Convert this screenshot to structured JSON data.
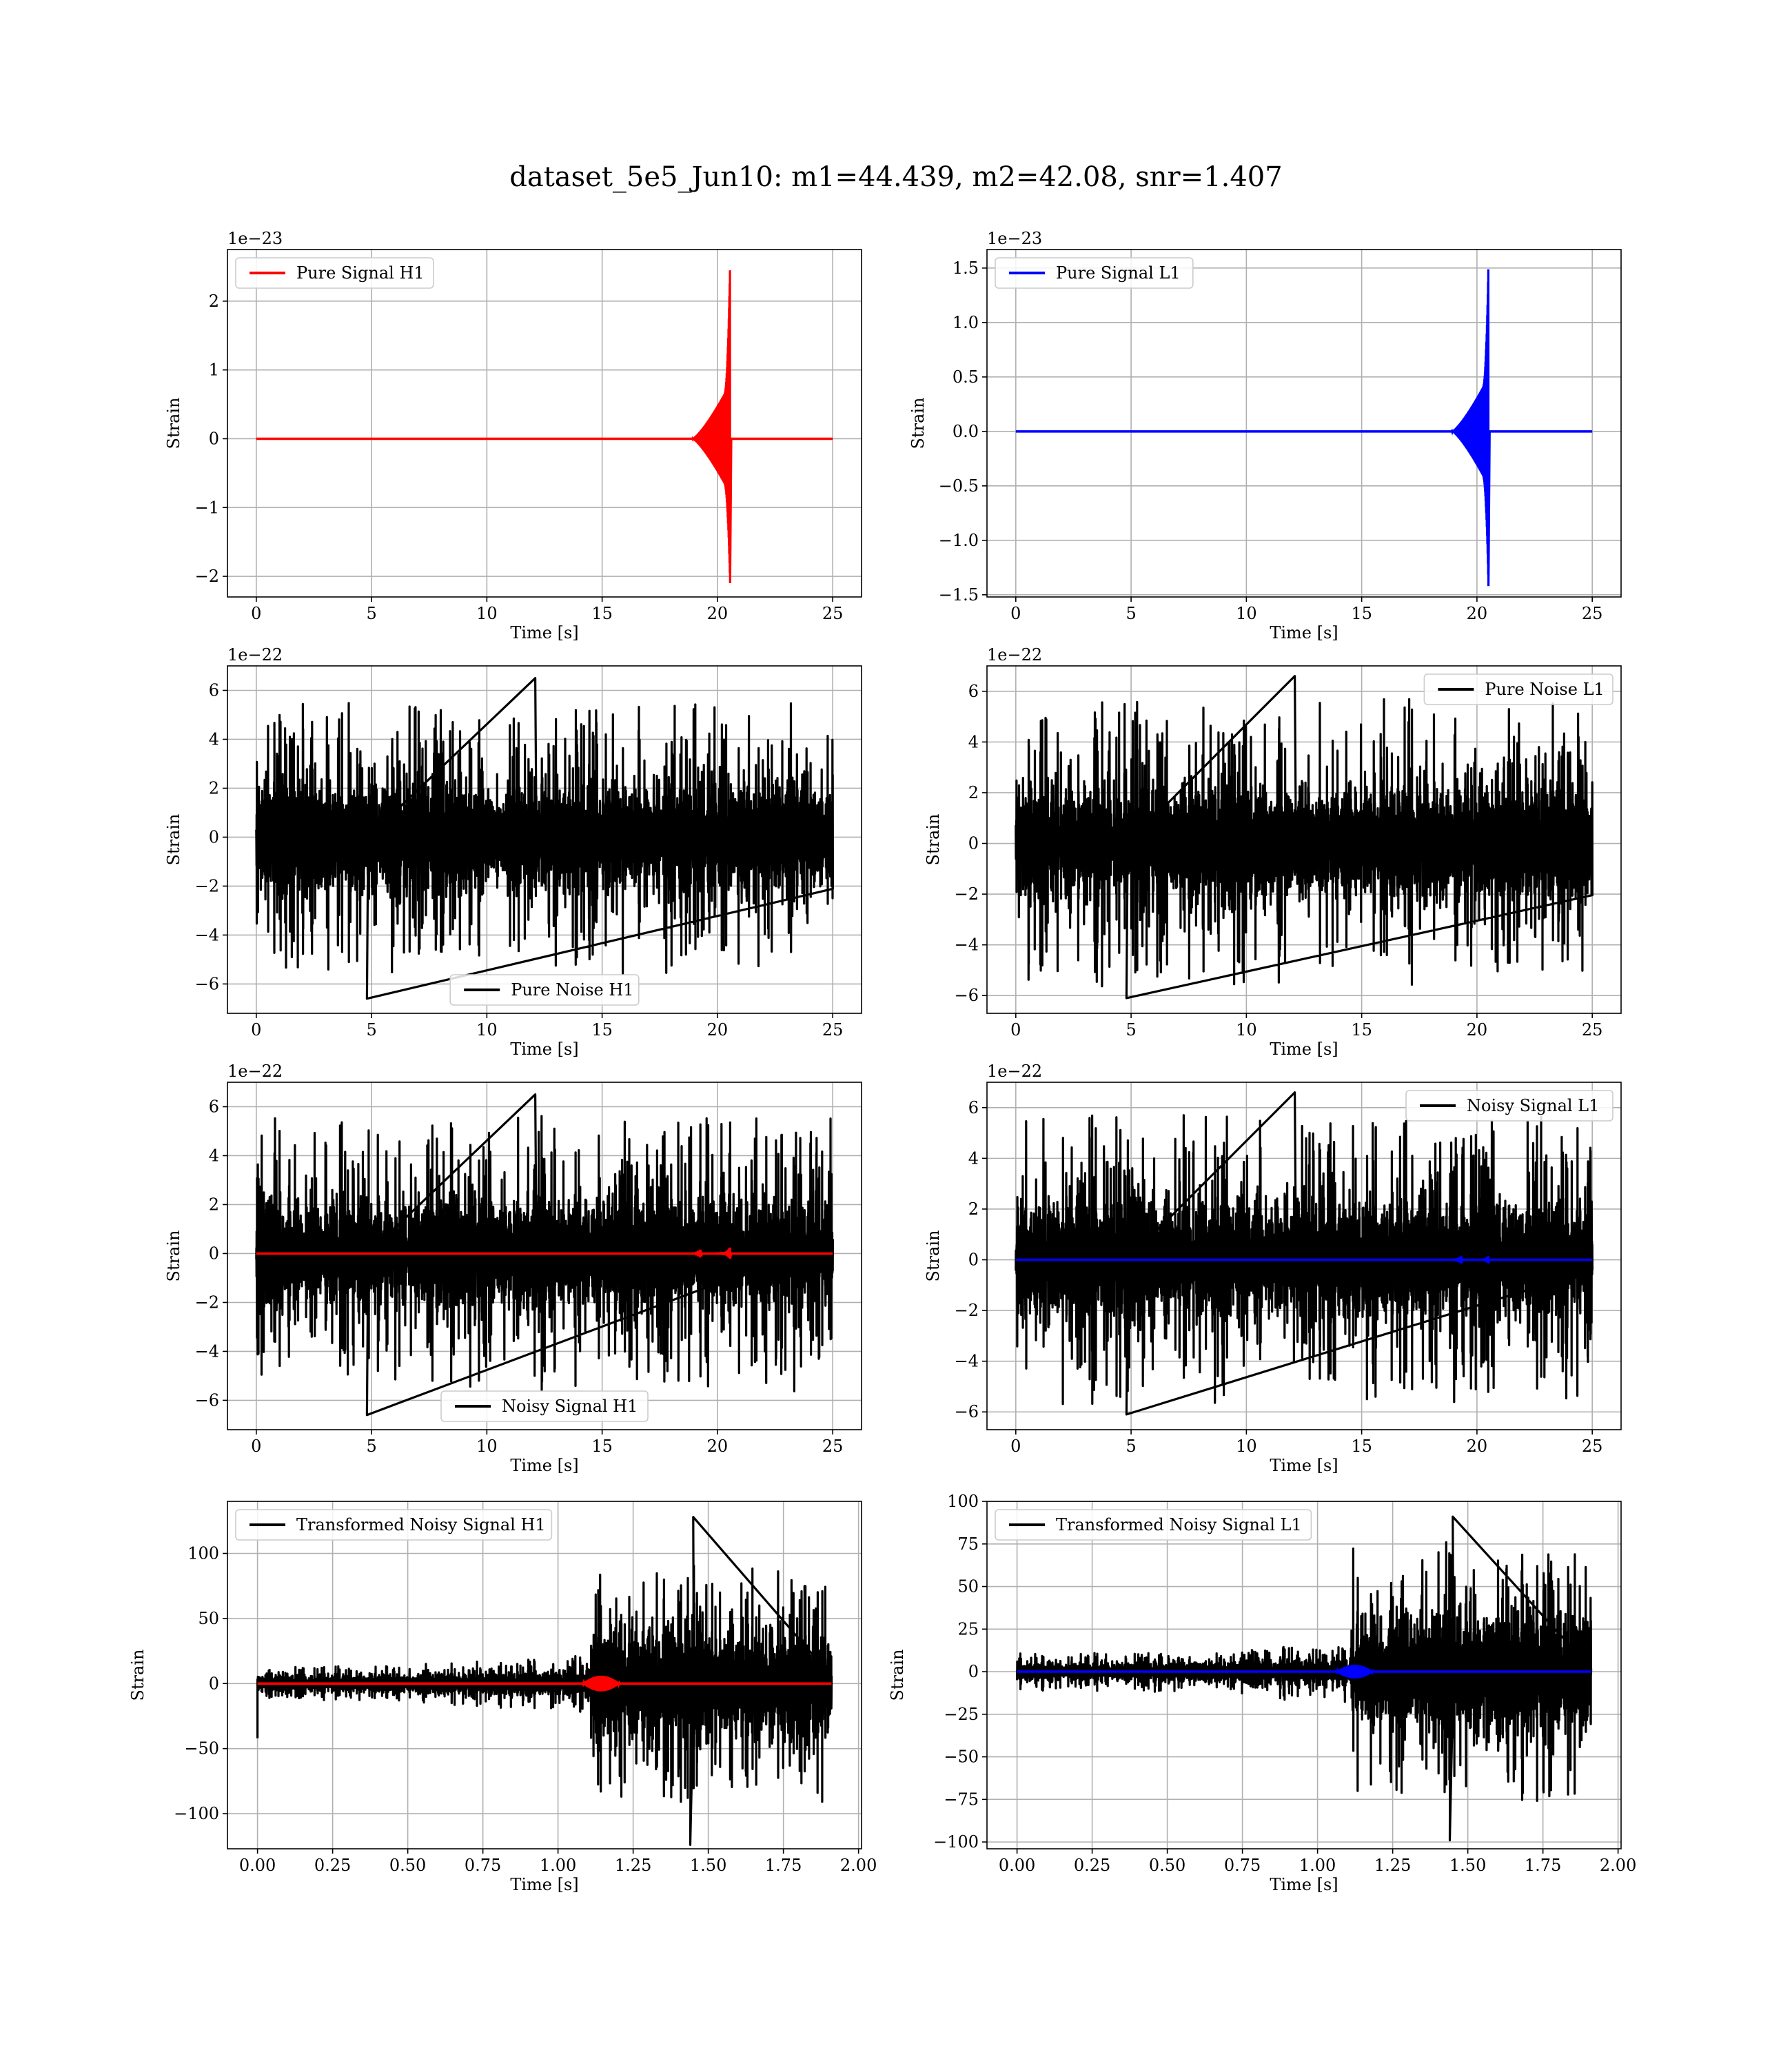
{
  "figure": {
    "title": "dataset_5e5_Jun10: m1=44.439, m2=42.08, snr=1.407"
  },
  "chart_data": [
    {
      "id": "pure-signal-h1",
      "type": "line",
      "title": "",
      "xlabel": "Time [s]",
      "ylabel": "Strain",
      "offset_text": "1e−23",
      "xlim": [
        -1.25,
        26.25
      ],
      "ylim": [
        -2.3,
        2.75
      ],
      "xticks": [
        0,
        5,
        10,
        15,
        20,
        25
      ],
      "xtick_labels": [
        "0",
        "5",
        "10",
        "15",
        "20",
        "25"
      ],
      "yticks": [
        -2,
        -1,
        0,
        1,
        2
      ],
      "ytick_labels": [
        "−2",
        "−1",
        "0",
        "1",
        "2"
      ],
      "grid": true,
      "legend_position": "upper-left",
      "series": [
        {
          "name": "Pure Signal H1",
          "color": "#ff0000",
          "kind": "chirp",
          "t_start": 0,
          "t_end": 25,
          "t_merger": 20.55,
          "peak_upper": 2.55,
          "peak_lower": -2.1,
          "inspiral_envelope": 0.8,
          "inspiral_begin": 18.9
        }
      ]
    },
    {
      "id": "pure-signal-l1",
      "type": "line",
      "title": "",
      "xlabel": "Time [s]",
      "ylabel": "Strain",
      "offset_text": "1e−23",
      "xlim": [
        -1.25,
        26.25
      ],
      "ylim": [
        -1.52,
        1.67
      ],
      "xticks": [
        0,
        5,
        10,
        15,
        20,
        25
      ],
      "xtick_labels": [
        "0",
        "5",
        "10",
        "15",
        "20",
        "25"
      ],
      "yticks": [
        -1.5,
        -1.0,
        -0.5,
        0.0,
        0.5,
        1.0,
        1.5
      ],
      "ytick_labels": [
        "−1.5",
        "−1.0",
        "−0.5",
        "0.0",
        "0.5",
        "1.0",
        "1.5"
      ],
      "grid": true,
      "legend_position": "upper-left",
      "series": [
        {
          "name": "Pure Signal L1",
          "color": "#0000ff",
          "kind": "chirp",
          "t_start": 0,
          "t_end": 25,
          "t_merger": 20.5,
          "peak_upper": 1.55,
          "peak_lower": -1.42,
          "inspiral_envelope": 0.5,
          "inspiral_begin": 18.9
        }
      ]
    },
    {
      "id": "pure-noise-h1",
      "type": "line",
      "title": "",
      "xlabel": "Time [s]",
      "ylabel": "Strain",
      "offset_text": "1e−22",
      "xlim": [
        -1.25,
        26.25
      ],
      "ylim": [
        -7.2,
        7.0
      ],
      "xticks": [
        0,
        5,
        10,
        15,
        20,
        25
      ],
      "xtick_labels": [
        "0",
        "5",
        "10",
        "15",
        "20",
        "25"
      ],
      "yticks": [
        -6,
        -4,
        -2,
        0,
        2,
        4,
        6
      ],
      "ytick_labels": [
        "−6",
        "−4",
        "−2",
        "0",
        "2",
        "4",
        "6"
      ],
      "grid": true,
      "legend_position": "lower-center",
      "series": [
        {
          "name": "Pure Noise H1",
          "color": "#000000",
          "kind": "noise",
          "t_start": 0,
          "t_end": 25,
          "band": 3.4,
          "max": 6.5,
          "min": -6.6
        }
      ]
    },
    {
      "id": "pure-noise-l1",
      "type": "line",
      "title": "",
      "xlabel": "Time [s]",
      "ylabel": "Strain",
      "offset_text": "1e−22",
      "xlim": [
        -1.25,
        26.25
      ],
      "ylim": [
        -6.7,
        7.0
      ],
      "xticks": [
        0,
        5,
        10,
        15,
        20,
        25
      ],
      "xtick_labels": [
        "0",
        "5",
        "10",
        "15",
        "20",
        "25"
      ],
      "yticks": [
        -6,
        -4,
        -2,
        0,
        2,
        4,
        6
      ],
      "ytick_labels": [
        "−6",
        "−4",
        "−2",
        "0",
        "2",
        "4",
        "6"
      ],
      "grid": true,
      "legend_position": "upper-right",
      "series": [
        {
          "name": "Pure Noise L1",
          "color": "#000000",
          "kind": "noise",
          "t_start": 0,
          "t_end": 25,
          "band": 3.4,
          "max": 6.6,
          "min": -6.1
        }
      ]
    },
    {
      "id": "noisy-signal-h1",
      "type": "line",
      "title": "",
      "xlabel": "Time [s]",
      "ylabel": "Strain",
      "offset_text": "1e−22",
      "xlim": [
        -1.25,
        26.25
      ],
      "ylim": [
        -7.2,
        7.0
      ],
      "xticks": [
        0,
        5,
        10,
        15,
        20,
        25
      ],
      "xtick_labels": [
        "0",
        "5",
        "10",
        "15",
        "20",
        "25"
      ],
      "yticks": [
        -6,
        -4,
        -2,
        0,
        2,
        4,
        6
      ],
      "ytick_labels": [
        "−6",
        "−4",
        "−2",
        "0",
        "2",
        "4",
        "6"
      ],
      "grid": true,
      "legend_position": "lower-center",
      "series": [
        {
          "name": "Noisy Signal H1",
          "color": "#000000",
          "kind": "noise",
          "t_start": 0,
          "t_end": 25,
          "band": 3.4,
          "max": 6.5,
          "min": -6.6
        },
        {
          "name": "",
          "color": "#ff0000",
          "kind": "chirp",
          "t_start": 0,
          "t_end": 25,
          "t_merger": 20.55,
          "peak_upper": 0.255,
          "peak_lower": -0.21,
          "inspiral_envelope": 0.08,
          "inspiral_begin": 18.9
        }
      ]
    },
    {
      "id": "noisy-signal-l1",
      "type": "line",
      "title": "",
      "xlabel": "Time [s]",
      "ylabel": "Strain",
      "offset_text": "1e−22",
      "xlim": [
        -1.25,
        26.25
      ],
      "ylim": [
        -6.7,
        7.0
      ],
      "xticks": [
        0,
        5,
        10,
        15,
        20,
        25
      ],
      "xtick_labels": [
        "0",
        "5",
        "10",
        "15",
        "20",
        "25"
      ],
      "yticks": [
        -6,
        -4,
        -2,
        0,
        2,
        4,
        6
      ],
      "ytick_labels": [
        "−6",
        "−4",
        "−2",
        "0",
        "2",
        "4",
        "6"
      ],
      "grid": true,
      "legend_position": "upper-right",
      "series": [
        {
          "name": "Noisy Signal L1",
          "color": "#000000",
          "kind": "noise",
          "t_start": 0,
          "t_end": 25,
          "band": 3.4,
          "max": 6.6,
          "min": -6.1
        },
        {
          "name": "",
          "color": "#0000ff",
          "kind": "chirp",
          "t_start": 0,
          "t_end": 25,
          "t_merger": 20.5,
          "peak_upper": 0.155,
          "peak_lower": -0.142,
          "inspiral_envelope": 0.05,
          "inspiral_begin": 18.9
        }
      ]
    },
    {
      "id": "transformed-noisy-signal-h1",
      "type": "line",
      "title": "",
      "xlabel": "Time [s]",
      "ylabel": "Strain",
      "offset_text": "",
      "xlim": [
        -0.1,
        2.01
      ],
      "ylim": [
        -127,
        140
      ],
      "xticks": [
        0.0,
        0.25,
        0.5,
        0.75,
        1.0,
        1.25,
        1.5,
        1.75,
        2.0
      ],
      "xtick_labels": [
        "0.00",
        "0.25",
        "0.50",
        "0.75",
        "1.00",
        "1.25",
        "1.50",
        "1.75",
        "2.00"
      ],
      "yticks": [
        -100,
        -50,
        0,
        50,
        100
      ],
      "ytick_labels": [
        "−100",
        "−50",
        "0",
        "50",
        "100"
      ],
      "grid": true,
      "legend_position": "upper-left",
      "series": [
        {
          "name": "Transformed Noisy Signal H1",
          "color": "#000000",
          "kind": "transformed",
          "t_start": 0,
          "t_end": 1.91,
          "t_step": 1.11,
          "low_band": 7,
          "mid_band": 12,
          "high_band": 48,
          "max": 128,
          "min": -124,
          "first_dip": -42
        },
        {
          "name": "",
          "color": "#ff0000",
          "kind": "tchirp",
          "t_start": 0,
          "t_end": 1.91,
          "t_merger": 1.2,
          "amp": 6
        }
      ]
    },
    {
      "id": "transformed-noisy-signal-l1",
      "type": "line",
      "title": "",
      "xlabel": "Time [s]",
      "ylabel": "Strain",
      "offset_text": "",
      "xlim": [
        -0.1,
        2.01
      ],
      "ylim": [
        -104,
        100
      ],
      "xticks": [
        0.0,
        0.25,
        0.5,
        0.75,
        1.0,
        1.25,
        1.5,
        1.75,
        2.0
      ],
      "xtick_labels": [
        "0.00",
        "0.25",
        "0.50",
        "0.75",
        "1.00",
        "1.25",
        "1.50",
        "1.75",
        "2.00"
      ],
      "yticks": [
        -100,
        -75,
        -50,
        -25,
        0,
        25,
        50,
        75,
        100
      ],
      "ytick_labels": [
        "−100",
        "−75",
        "−50",
        "−25",
        "0",
        "25",
        "50",
        "75",
        "100"
      ],
      "grid": true,
      "legend_position": "upper-left",
      "series": [
        {
          "name": "Transformed Noisy Signal L1",
          "color": "#000000",
          "kind": "transformed",
          "t_start": 0,
          "t_end": 1.91,
          "t_step": 1.11,
          "low_band": 6,
          "mid_band": 10,
          "high_band": 40,
          "max": 91,
          "min": -99,
          "first_dip": -5
        },
        {
          "name": "",
          "color": "#0000ff",
          "kind": "tchirp",
          "t_start": 0,
          "t_end": 1.91,
          "t_merger": 1.18,
          "amp": 4
        }
      ]
    }
  ]
}
